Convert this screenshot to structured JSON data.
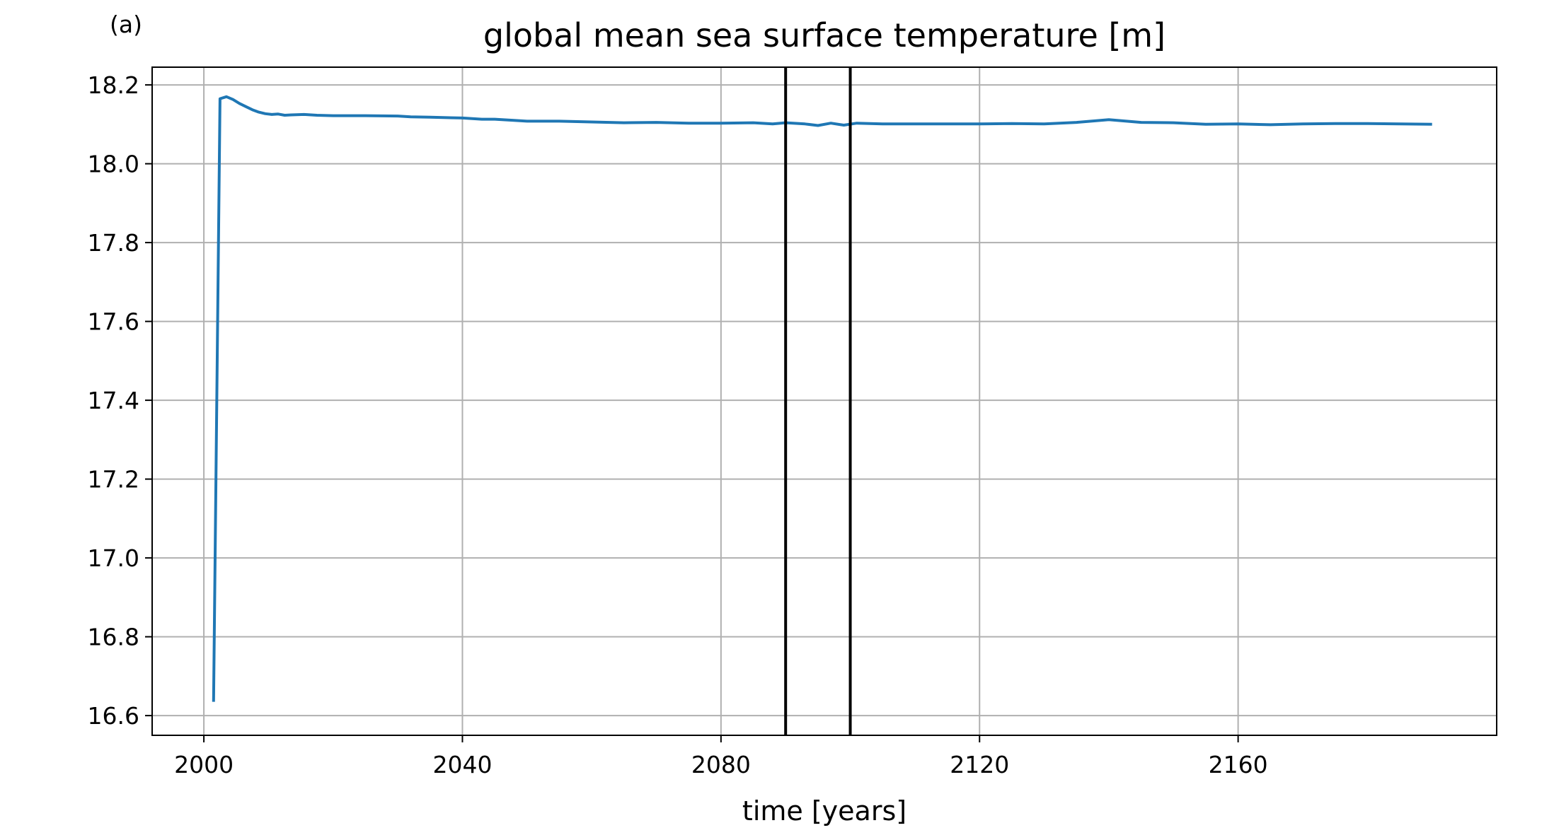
{
  "panel_label": "(a)",
  "chart_data": {
    "type": "line",
    "title": "global mean sea surface temperature [m]",
    "xlabel": "time [years]",
    "ylabel": "",
    "xlim": [
      1992,
      2200
    ],
    "ylim": [
      16.55,
      18.245
    ],
    "xticks": [
      2000,
      2040,
      2080,
      2120,
      2160
    ],
    "xtick_labels": [
      "2000",
      "2040",
      "2080",
      "2120",
      "2160"
    ],
    "yticks": [
      16.6,
      16.8,
      17.0,
      17.2,
      17.4,
      17.6,
      17.8,
      18.0,
      18.2
    ],
    "ytick_labels": [
      "16.6",
      "16.8",
      "17.0",
      "17.2",
      "17.4",
      "17.6",
      "17.8",
      "18.0",
      "18.2"
    ],
    "grid": true,
    "vlines": [
      2090,
      2100
    ],
    "series": [
      {
        "color": "#1f77b4",
        "x": [
          2001.5,
          2002.5,
          2003.5,
          2004.5,
          2005.5,
          2006.5,
          2007.5,
          2008.5,
          2009.5,
          2010.5,
          2011.5,
          2012.5,
          2013.5,
          2015.5,
          2017.5,
          2020,
          2025,
          2030,
          2032,
          2035,
          2040,
          2043,
          2045,
          2048,
          2050,
          2055,
          2060,
          2065,
          2070,
          2075,
          2080,
          2085,
          2088,
          2090,
          2093,
          2095,
          2097,
          2099,
          2101,
          2105,
          2110,
          2115,
          2120,
          2125,
          2130,
          2135,
          2140,
          2145,
          2150,
          2155,
          2160,
          2165,
          2170,
          2175,
          2180,
          2185,
          2190
        ],
        "values": [
          16.635,
          18.165,
          18.17,
          18.163,
          18.153,
          18.145,
          18.137,
          18.131,
          18.127,
          18.125,
          18.126,
          18.123,
          18.124,
          18.125,
          18.123,
          18.122,
          18.122,
          18.121,
          18.119,
          18.118,
          18.116,
          18.113,
          18.113,
          18.11,
          18.108,
          18.108,
          18.106,
          18.104,
          18.105,
          18.103,
          18.103,
          18.104,
          18.101,
          18.104,
          18.101,
          18.097,
          18.103,
          18.098,
          18.103,
          18.101,
          18.101,
          18.101,
          18.101,
          18.102,
          18.101,
          18.105,
          18.112,
          18.105,
          18.104,
          18.1,
          18.101,
          18.099,
          18.101,
          18.102,
          18.102,
          18.101,
          18.1
        ]
      }
    ]
  }
}
